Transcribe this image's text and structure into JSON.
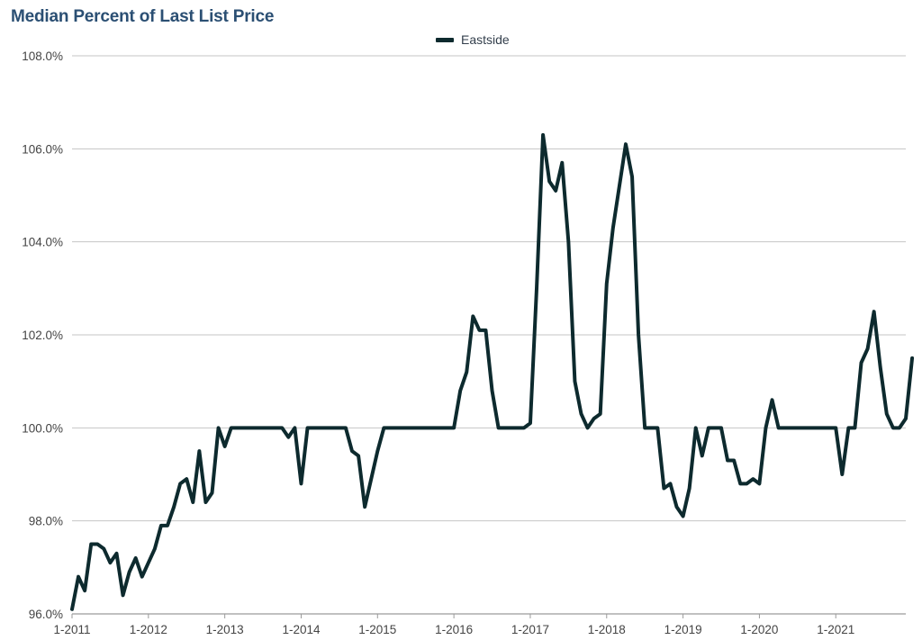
{
  "chart_data": {
    "type": "line",
    "title": "Median Percent of Last List Price",
    "xlabel": "",
    "ylabel": "",
    "legend_position": "top-center",
    "grid": true,
    "ylim": [
      96.0,
      108.0
    ],
    "y_ticks": [
      "96.0%",
      "98.0%",
      "100.0%",
      "102.0%",
      "104.0%",
      "106.0%",
      "108.0%"
    ],
    "x_ticks": [
      "1-2011",
      "1-2012",
      "1-2013",
      "1-2014",
      "1-2015",
      "1-2016",
      "1-2017",
      "1-2018",
      "1-2019",
      "1-2020",
      "1-2021"
    ],
    "x_start": "1-2011",
    "x_end": "12-2021",
    "series": [
      {
        "name": "Eastside",
        "color": "#0d2a2e",
        "values": [
          96.1,
          96.8,
          96.5,
          97.5,
          97.5,
          97.4,
          97.1,
          97.3,
          96.4,
          96.9,
          97.2,
          96.8,
          97.1,
          97.4,
          97.9,
          97.9,
          98.3,
          98.8,
          98.9,
          98.4,
          99.5,
          98.4,
          98.6,
          100.0,
          99.6,
          100.0,
          100.0,
          100.0,
          100.0,
          100.0,
          100.0,
          100.0,
          100.0,
          100.0,
          99.8,
          100.0,
          98.8,
          100.0,
          100.0,
          100.0,
          100.0,
          100.0,
          100.0,
          100.0,
          99.5,
          99.4,
          98.3,
          98.9,
          99.5,
          100.0,
          100.0,
          100.0,
          100.0,
          100.0,
          100.0,
          100.0,
          100.0,
          100.0,
          100.0,
          100.0,
          100.0,
          100.8,
          101.2,
          102.4,
          102.1,
          102.1,
          100.8,
          100.0,
          100.0,
          100.0,
          100.0,
          100.0,
          100.1,
          103.0,
          106.3,
          105.3,
          105.1,
          105.7,
          104.0,
          101.0,
          100.3,
          100.0,
          100.2,
          100.3,
          103.1,
          104.3,
          105.2,
          106.1,
          105.4,
          102.0,
          100.0,
          100.0,
          100.0,
          98.7,
          98.8,
          98.3,
          98.1,
          98.7,
          100.0,
          99.4,
          100.0,
          100.0,
          100.0,
          99.3,
          99.3,
          98.8,
          98.8,
          98.9,
          98.8,
          100.0,
          100.6,
          100.0,
          100.0,
          100.0,
          100.0,
          100.0,
          100.0,
          100.0,
          100.0,
          100.0,
          100.0,
          99.0,
          100.0,
          100.0,
          101.4,
          101.7,
          102.5,
          101.3,
          100.3,
          100.0,
          100.0,
          100.2,
          101.5
        ]
      }
    ]
  }
}
